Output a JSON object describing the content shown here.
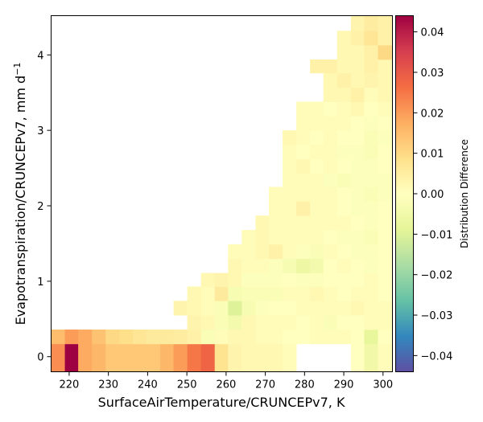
{
  "chart_data": {
    "type": "heatmap",
    "xlabel": "SurfaceAirTemperature/CRUNCEPv7,  K",
    "ylabel": "Evapotranspiration/CRUNCEPv7,  mm d",
    "ylabel_sup": "−1",
    "xlim": [
      215.4,
      302.4
    ],
    "ylim": [
      -0.2,
      4.52
    ],
    "x_ticks": [
      220,
      230,
      240,
      250,
      260,
      270,
      280,
      290,
      300
    ],
    "y_ticks": [
      0,
      1,
      2,
      3,
      4
    ],
    "x_bin_edges": [
      215.4,
      218.9,
      222.3,
      225.8,
      229.3,
      232.8,
      236.2,
      239.7,
      243.2,
      246.6,
      250.1,
      253.6,
      257.1,
      260.5,
      264.0,
      267.5,
      270.9,
      274.4,
      277.9,
      281.4,
      284.8,
      288.3,
      291.8,
      295.2,
      298.7,
      302.2
    ],
    "y_bin_edges": [
      -0.2,
      0.17,
      0.36,
      0.55,
      0.74,
      0.93,
      1.11,
      1.3,
      1.49,
      1.68,
      1.87,
      2.06,
      2.25,
      2.43,
      2.62,
      2.81,
      3.0,
      3.19,
      3.38,
      3.57,
      3.76,
      3.94,
      4.13,
      4.32,
      4.52
    ],
    "colorbar": {
      "label": "Distribution Difference",
      "range": [
        -0.044,
        0.044
      ],
      "ticks": [
        0.04,
        0.03,
        0.02,
        0.01,
        0.0,
        -0.01,
        -0.02,
        -0.03,
        -0.04
      ],
      "tick_labels": [
        "0.04",
        "0.03",
        "0.02",
        "0.01",
        "0.00",
        "−0.01",
        "−0.02",
        "−0.03",
        "−0.04"
      ],
      "colormap": "Spectral_r"
    },
    "cells": [
      [
        0,
        0,
        0.022
      ],
      [
        1,
        0,
        0.044
      ],
      [
        2,
        0,
        0.018
      ],
      [
        3,
        0,
        0.016
      ],
      [
        4,
        0,
        0.013
      ],
      [
        5,
        0,
        0.013
      ],
      [
        6,
        0,
        0.013
      ],
      [
        7,
        0,
        0.013
      ],
      [
        8,
        0,
        0.016
      ],
      [
        9,
        0,
        0.02
      ],
      [
        10,
        0,
        0.025
      ],
      [
        11,
        0,
        0.028
      ],
      [
        12,
        0,
        0.008
      ],
      [
        13,
        0,
        0.003
      ],
      [
        14,
        0,
        0.002
      ],
      [
        15,
        0,
        0.002
      ],
      [
        16,
        0,
        0.002
      ],
      [
        17,
        0,
        0.001
      ],
      [
        22,
        0,
        0.0
      ],
      [
        23,
        0,
        -0.005
      ],
      [
        24,
        0,
        0.001
      ],
      [
        0,
        1,
        0.015
      ],
      [
        1,
        1,
        0.02
      ],
      [
        2,
        1,
        0.018
      ],
      [
        3,
        1,
        0.014
      ],
      [
        4,
        1,
        0.01
      ],
      [
        5,
        1,
        0.009
      ],
      [
        6,
        1,
        0.007
      ],
      [
        7,
        1,
        0.006
      ],
      [
        8,
        1,
        0.006
      ],
      [
        9,
        1,
        0.005
      ],
      [
        10,
        1,
        0.004
      ],
      [
        11,
        1,
        -0.002
      ],
      [
        12,
        1,
        0.001
      ],
      [
        13,
        1,
        0.002
      ],
      [
        14,
        1,
        0.002
      ],
      [
        15,
        1,
        0.001
      ],
      [
        16,
        1,
        0.001
      ],
      [
        17,
        1,
        0.0
      ],
      [
        18,
        1,
        0.0
      ],
      [
        19,
        1,
        0.001
      ],
      [
        20,
        1,
        0.001
      ],
      [
        21,
        1,
        0.001
      ],
      [
        22,
        1,
        0.0
      ],
      [
        23,
        1,
        -0.008
      ],
      [
        24,
        1,
        0.0
      ],
      [
        10,
        2,
        0.003
      ],
      [
        11,
        2,
        0.002
      ],
      [
        12,
        2,
        -0.002
      ],
      [
        13,
        2,
        -0.004
      ],
      [
        14,
        2,
        0.002
      ],
      [
        15,
        2,
        0.001
      ],
      [
        16,
        2,
        0.001
      ],
      [
        17,
        2,
        0.001
      ],
      [
        18,
        2,
        0.0
      ],
      [
        19,
        2,
        0.001
      ],
      [
        20,
        2,
        -0.002
      ],
      [
        21,
        2,
        0.0
      ],
      [
        22,
        2,
        0.0
      ],
      [
        23,
        2,
        0.001
      ],
      [
        24,
        2,
        0.001
      ],
      [
        9,
        3,
        0.003
      ],
      [
        10,
        3,
        0.002
      ],
      [
        11,
        3,
        0.001
      ],
      [
        12,
        3,
        -0.002
      ],
      [
        13,
        3,
        -0.01
      ],
      [
        14,
        3,
        -0.003
      ],
      [
        15,
        3,
        -0.001
      ],
      [
        16,
        3,
        0.0
      ],
      [
        17,
        3,
        0.0
      ],
      [
        18,
        3,
        0.001
      ],
      [
        19,
        3,
        0.001
      ],
      [
        20,
        3,
        0.001
      ],
      [
        21,
        3,
        0.001
      ],
      [
        22,
        3,
        0.002
      ],
      [
        23,
        3,
        0.001
      ],
      [
        24,
        3,
        0.001
      ],
      [
        10,
        4,
        0.002
      ],
      [
        11,
        4,
        0.001
      ],
      [
        12,
        4,
        0.006
      ],
      [
        13,
        4,
        -0.003
      ],
      [
        14,
        4,
        -0.002
      ],
      [
        15,
        4,
        -0.002
      ],
      [
        16,
        4,
        -0.002
      ],
      [
        17,
        4,
        0.001
      ],
      [
        18,
        4,
        0.001
      ],
      [
        19,
        4,
        0.002
      ],
      [
        20,
        4,
        0.001
      ],
      [
        21,
        4,
        0.0
      ],
      [
        22,
        4,
        0.001
      ],
      [
        23,
        4,
        0.001
      ],
      [
        24,
        4,
        0.0
      ],
      [
        11,
        5,
        0.002
      ],
      [
        12,
        5,
        0.003
      ],
      [
        13,
        5,
        0.002
      ],
      [
        14,
        5,
        -0.001
      ],
      [
        15,
        5,
        -0.001
      ],
      [
        16,
        5,
        -0.001
      ],
      [
        17,
        5,
        0.0
      ],
      [
        18,
        5,
        -0.001
      ],
      [
        19,
        5,
        -0.001
      ],
      [
        20,
        5,
        0.0
      ],
      [
        21,
        5,
        0.0
      ],
      [
        22,
        5,
        0.0
      ],
      [
        23,
        5,
        0.001
      ],
      [
        24,
        5,
        0.0
      ],
      [
        13,
        6,
        0.002
      ],
      [
        14,
        6,
        0.001
      ],
      [
        15,
        6,
        0.001
      ],
      [
        16,
        6,
        -0.001
      ],
      [
        17,
        6,
        -0.003
      ],
      [
        18,
        6,
        -0.006
      ],
      [
        19,
        6,
        -0.004
      ],
      [
        20,
        6,
        0.0
      ],
      [
        21,
        6,
        0.001
      ],
      [
        22,
        6,
        0.0
      ],
      [
        23,
        6,
        -0.001
      ],
      [
        24,
        6,
        0.0
      ],
      [
        13,
        7,
        0.001
      ],
      [
        14,
        7,
        0.001
      ],
      [
        15,
        7,
        0.002
      ],
      [
        16,
        7,
        0.004
      ],
      [
        17,
        7,
        0.001
      ],
      [
        18,
        7,
        -0.001
      ],
      [
        19,
        7,
        -0.002
      ],
      [
        20,
        7,
        0.001
      ],
      [
        21,
        7,
        0.0
      ],
      [
        22,
        7,
        -0.001
      ],
      [
        23,
        7,
        -0.001
      ],
      [
        24,
        7,
        0.0
      ],
      [
        14,
        8,
        0.001
      ],
      [
        15,
        8,
        0.002
      ],
      [
        16,
        8,
        0.001
      ],
      [
        17,
        8,
        0.001
      ],
      [
        18,
        8,
        0.001
      ],
      [
        19,
        8,
        0.001
      ],
      [
        20,
        8,
        0.0
      ],
      [
        21,
        8,
        -0.001
      ],
      [
        22,
        8,
        -0.001
      ],
      [
        23,
        8,
        -0.002
      ],
      [
        24,
        8,
        0.0
      ],
      [
        15,
        9,
        0.002
      ],
      [
        16,
        9,
        0.001
      ],
      [
        17,
        9,
        0.001
      ],
      [
        18,
        9,
        0.001
      ],
      [
        19,
        9,
        0.001
      ],
      [
        20,
        9,
        0.001
      ],
      [
        21,
        9,
        0.001
      ],
      [
        22,
        9,
        0.0
      ],
      [
        23,
        9,
        -0.001
      ],
      [
        24,
        9,
        0.0
      ],
      [
        16,
        10,
        0.001
      ],
      [
        17,
        10,
        0.001
      ],
      [
        18,
        10,
        0.004
      ],
      [
        19,
        10,
        0.001
      ],
      [
        20,
        10,
        0.001
      ],
      [
        21,
        10,
        0.0
      ],
      [
        22,
        10,
        -0.001
      ],
      [
        23,
        10,
        -0.001
      ],
      [
        24,
        10,
        0.0
      ],
      [
        16,
        11,
        0.001
      ],
      [
        17,
        11,
        0.001
      ],
      [
        18,
        11,
        0.001
      ],
      [
        19,
        11,
        0.001
      ],
      [
        20,
        11,
        0.001
      ],
      [
        21,
        11,
        0.0
      ],
      [
        22,
        11,
        -0.001
      ],
      [
        23,
        11,
        -0.002
      ],
      [
        24,
        11,
        -0.001
      ],
      [
        17,
        12,
        0.001
      ],
      [
        18,
        12,
        0.001
      ],
      [
        19,
        12,
        0.001
      ],
      [
        20,
        12,
        -0.001
      ],
      [
        21,
        12,
        -0.002
      ],
      [
        22,
        12,
        -0.001
      ],
      [
        23,
        12,
        -0.001
      ],
      [
        24,
        12,
        -0.001
      ],
      [
        17,
        13,
        0.001
      ],
      [
        18,
        13,
        0.002
      ],
      [
        19,
        13,
        0.0
      ],
      [
        20,
        13,
        0.001
      ],
      [
        21,
        13,
        0.0
      ],
      [
        22,
        13,
        -0.001
      ],
      [
        23,
        13,
        -0.001
      ],
      [
        24,
        13,
        0.0
      ],
      [
        17,
        14,
        0.001
      ],
      [
        18,
        14,
        0.0
      ],
      [
        19,
        14,
        0.001
      ],
      [
        20,
        14,
        0.001
      ],
      [
        21,
        14,
        -0.001
      ],
      [
        22,
        14,
        -0.001
      ],
      [
        23,
        14,
        -0.002
      ],
      [
        24,
        14,
        0.0
      ],
      [
        17,
        15,
        0.002
      ],
      [
        18,
        15,
        0.001
      ],
      [
        19,
        15,
        0.0
      ],
      [
        20,
        15,
        0.001
      ],
      [
        21,
        15,
        0.0
      ],
      [
        22,
        15,
        0.0
      ],
      [
        23,
        15,
        -0.002
      ],
      [
        24,
        15,
        -0.001
      ],
      [
        18,
        16,
        0.001
      ],
      [
        19,
        16,
        0.001
      ],
      [
        20,
        16,
        0.001
      ],
      [
        21,
        16,
        0.001
      ],
      [
        22,
        16,
        0.0
      ],
      [
        23,
        16,
        -0.001
      ],
      [
        24,
        16,
        0.0
      ],
      [
        18,
        17,
        0.001
      ],
      [
        19,
        17,
        0.001
      ],
      [
        20,
        17,
        0.0
      ],
      [
        21,
        17,
        0.001
      ],
      [
        22,
        17,
        0.002
      ],
      [
        23,
        17,
        0.0
      ],
      [
        24,
        17,
        0.001
      ],
      [
        20,
        18,
        0.002
      ],
      [
        21,
        18,
        0.002
      ],
      [
        22,
        18,
        0.004
      ],
      [
        23,
        18,
        0.001
      ],
      [
        24,
        18,
        0.002
      ],
      [
        20,
        19,
        0.002
      ],
      [
        21,
        19,
        0.004
      ],
      [
        22,
        19,
        0.002
      ],
      [
        23,
        19,
        0.003
      ],
      [
        24,
        19,
        0.002
      ],
      [
        19,
        20,
        0.004
      ],
      [
        20,
        20,
        0.004
      ],
      [
        21,
        20,
        0.002
      ],
      [
        22,
        20,
        0.002
      ],
      [
        23,
        20,
        0.004
      ],
      [
        24,
        20,
        0.002
      ],
      [
        21,
        21,
        0.002
      ],
      [
        22,
        21,
        0.002
      ],
      [
        23,
        21,
        0.004
      ],
      [
        24,
        21,
        0.01
      ],
      [
        21,
        22,
        0.002
      ],
      [
        22,
        22,
        0.004
      ],
      [
        23,
        22,
        0.007
      ],
      [
        24,
        22,
        0.004
      ],
      [
        22,
        23,
        0.003
      ],
      [
        23,
        23,
        0.005
      ],
      [
        24,
        23,
        0.004
      ]
    ]
  }
}
